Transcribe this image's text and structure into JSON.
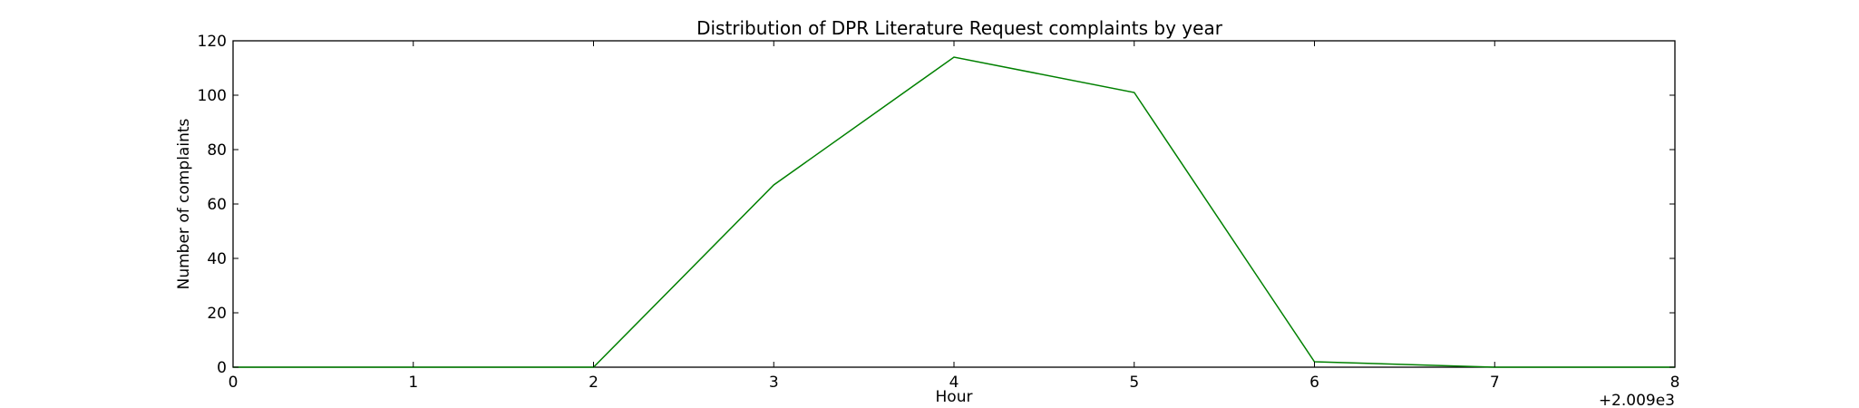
{
  "chart_data": {
    "type": "line",
    "title": "Distribution of  DPR Literature Request complaints by year",
    "xlabel": "Hour",
    "ylabel": "Number of complaints",
    "x_offset_label": "+2.009e3",
    "xlim": [
      0,
      8
    ],
    "ylim": [
      0,
      120
    ],
    "x_ticks": [
      0,
      1,
      2,
      3,
      4,
      5,
      6,
      7,
      8
    ],
    "x_tick_labels": [
      "0",
      "1",
      "2",
      "3",
      "4",
      "5",
      "6",
      "7",
      "8"
    ],
    "y_ticks": [
      0,
      20,
      40,
      60,
      80,
      100,
      120
    ],
    "y_tick_labels": [
      "0",
      "20",
      "40",
      "60",
      "80",
      "100",
      "120"
    ],
    "grid": false,
    "legend": "none",
    "series": [
      {
        "color": "#008000",
        "x": [
          0,
          1,
          2,
          3,
          4,
          5,
          6,
          7,
          8
        ],
        "y": [
          0,
          0,
          0,
          67,
          114,
          101,
          2,
          0,
          0
        ]
      }
    ]
  }
}
